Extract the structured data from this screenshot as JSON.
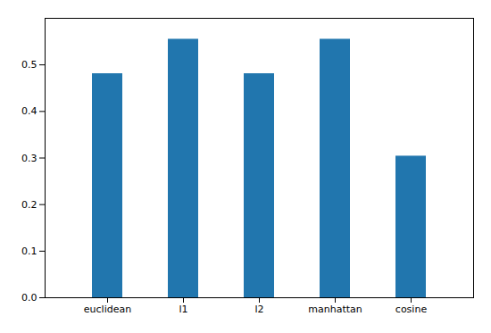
{
  "chart_data": {
    "type": "bar",
    "categories": [
      "euclidean",
      "l1",
      "l2",
      "manhattan",
      "cosine"
    ],
    "values": [
      0.481,
      0.555,
      0.481,
      0.555,
      0.304
    ],
    "color": "#2176ae",
    "ylim": [
      0.0,
      0.6
    ],
    "yticks": [
      {
        "value": 0.0,
        "label": "0.0"
      },
      0.1,
      0.2,
      0.3,
      0.4,
      0.5
    ],
    "grid": false
  }
}
